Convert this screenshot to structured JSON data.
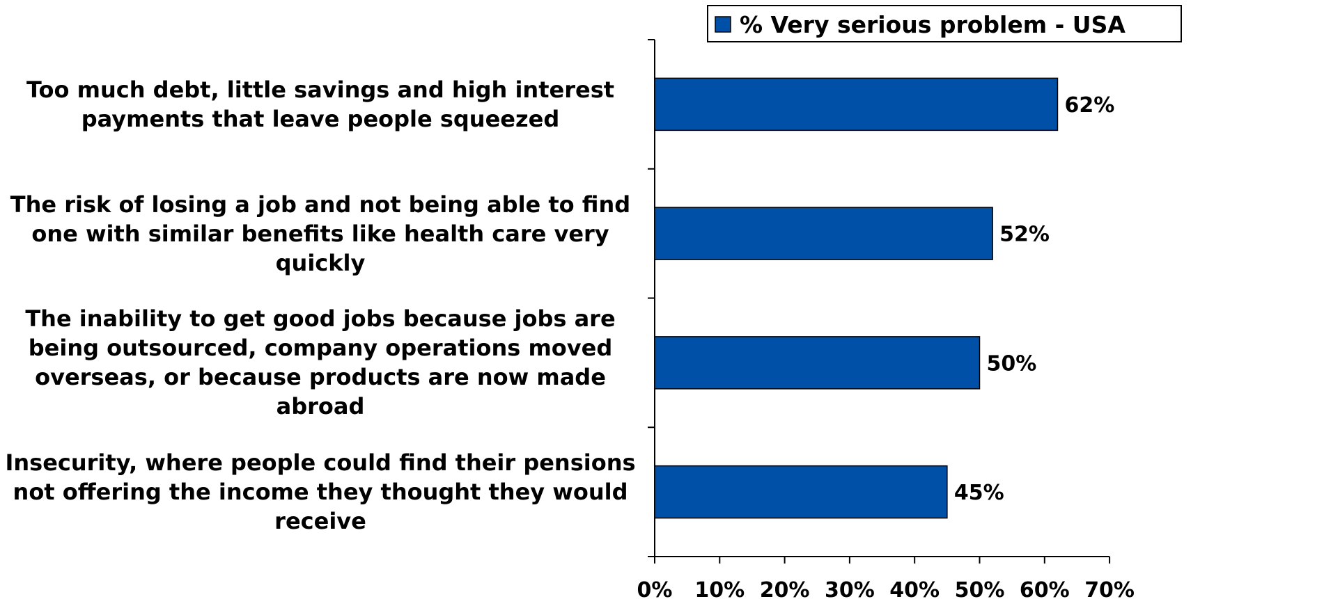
{
  "chart_data": {
    "type": "bar",
    "orientation": "horizontal",
    "categories": [
      "Too much debt, little savings and high interest payments that leave people squeezed",
      "The risk of losing a job and not being able to find one with similar benefits like health care very quickly",
      "The inability to get good jobs because jobs are being outsourced, company operations moved overseas, or because products are now made abroad",
      "Insecurity, where people could find their pensions not offering the income they thought they would receive"
    ],
    "series": [
      {
        "name": "% Very serious problem - USA",
        "values": [
          62,
          52,
          50,
          45
        ],
        "value_labels": [
          "62%",
          "52%",
          "50%",
          "45%"
        ],
        "color": "#0050A8"
      }
    ],
    "xlim": [
      0,
      70
    ],
    "x_ticks": [
      0,
      10,
      20,
      30,
      40,
      50,
      60,
      70
    ],
    "x_tick_labels": [
      "0%",
      "10%",
      "20%",
      "30%",
      "40%",
      "50%",
      "60%",
      "70%"
    ],
    "grid": false,
    "legend_position": "top"
  }
}
